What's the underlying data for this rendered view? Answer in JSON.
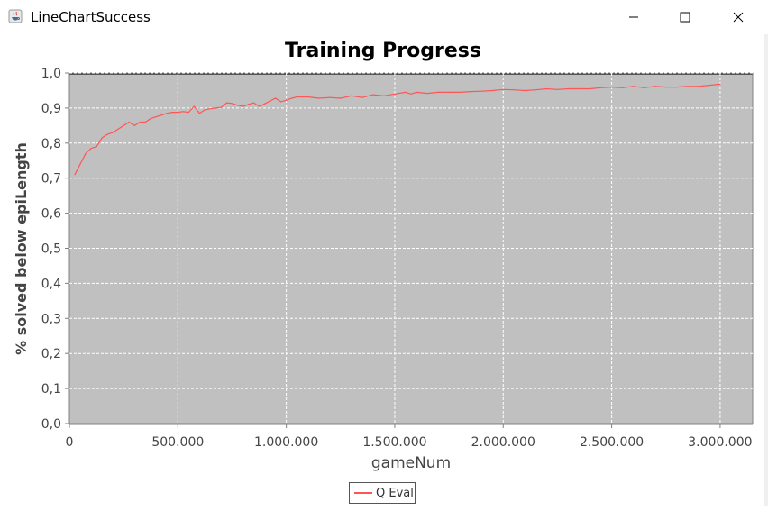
{
  "window": {
    "title": "LineChartSuccess",
    "app_icon": "java-icon",
    "controls": [
      "minimize-icon",
      "maximize-icon",
      "close-icon"
    ]
  },
  "chart_data": {
    "type": "line",
    "title": "Training Progress",
    "xlabel": "gameNum",
    "ylabel": "% solved below epiLength",
    "xlim": [
      0,
      3150000
    ],
    "ylim": [
      0,
      1.0
    ],
    "x_ticks": [
      0,
      500000,
      1000000,
      1500000,
      2000000,
      2500000,
      3000000
    ],
    "x_tick_labels": [
      "0",
      "500.000",
      "1.000.000",
      "1.500.000",
      "2.000.000",
      "2.500.000",
      "3.000.000"
    ],
    "y_ticks": [
      0,
      0.1,
      0.2,
      0.3,
      0.4,
      0.5,
      0.6,
      0.7,
      0.8,
      0.9,
      1.0
    ],
    "y_tick_labels": [
      "0,0",
      "0,1",
      "0,2",
      "0,3",
      "0,4",
      "0,5",
      "0,6",
      "0,7",
      "0,8",
      "0,9",
      "1,0"
    ],
    "grid": true,
    "background": "#c0c0c0",
    "legend_position": "bottom",
    "series": [
      {
        "name": "Q Eval",
        "color": "#ff5555",
        "x": [
          25000,
          50000,
          75000,
          100000,
          125000,
          150000,
          175000,
          200000,
          225000,
          250000,
          275000,
          300000,
          325000,
          350000,
          375000,
          400000,
          425000,
          450000,
          475000,
          500000,
          525000,
          550000,
          575000,
          600000,
          625000,
          650000,
          675000,
          700000,
          725000,
          750000,
          775000,
          800000,
          825000,
          850000,
          875000,
          900000,
          925000,
          950000,
          975000,
          1000000,
          1025000,
          1050000,
          1100000,
          1150000,
          1200000,
          1250000,
          1300000,
          1350000,
          1400000,
          1450000,
          1500000,
          1550000,
          1575000,
          1600000,
          1650000,
          1700000,
          1750000,
          1800000,
          1850000,
          1900000,
          1950000,
          2000000,
          2050000,
          2100000,
          2150000,
          2200000,
          2250000,
          2300000,
          2350000,
          2400000,
          2450000,
          2500000,
          2550000,
          2600000,
          2650000,
          2700000,
          2750000,
          2800000,
          2850000,
          2900000,
          2950000,
          3000000
        ],
        "y": [
          0.71,
          0.74,
          0.77,
          0.785,
          0.79,
          0.815,
          0.825,
          0.83,
          0.84,
          0.85,
          0.86,
          0.85,
          0.86,
          0.86,
          0.87,
          0.875,
          0.88,
          0.885,
          0.888,
          0.888,
          0.89,
          0.888,
          0.905,
          0.885,
          0.895,
          0.898,
          0.9,
          0.902,
          0.915,
          0.913,
          0.908,
          0.905,
          0.91,
          0.915,
          0.905,
          0.912,
          0.92,
          0.928,
          0.918,
          0.922,
          0.928,
          0.932,
          0.932,
          0.928,
          0.93,
          0.928,
          0.935,
          0.93,
          0.938,
          0.935,
          0.94,
          0.945,
          0.94,
          0.945,
          0.942,
          0.945,
          0.945,
          0.945,
          0.947,
          0.948,
          0.95,
          0.953,
          0.952,
          0.95,
          0.952,
          0.955,
          0.953,
          0.955,
          0.955,
          0.955,
          0.958,
          0.96,
          0.958,
          0.962,
          0.958,
          0.962,
          0.96,
          0.96,
          0.962,
          0.962,
          0.965,
          0.968
        ]
      }
    ]
  }
}
